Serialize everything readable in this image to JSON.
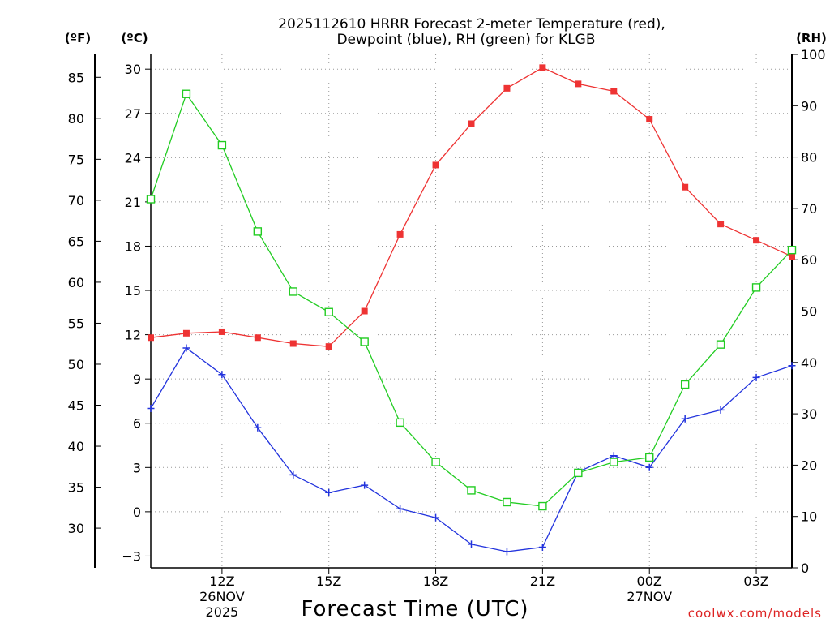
{
  "chart_data": {
    "type": "line",
    "title_line1": "2025112610 HRRR Forecast 2-meter Temperature (red),",
    "title_line2": "Dewpoint (blue), RH (green) for KLGB",
    "left_outer_label": "(ºF)",
    "left_inner_label": "(ºC)",
    "right_label": "(RH)",
    "xlabel": "Forecast Time (UTC)",
    "credit": "coolwx.com/models",
    "x_hours": [
      0,
      1,
      2,
      3,
      4,
      5,
      6,
      7,
      8,
      9,
      10,
      11,
      12,
      13,
      14,
      15,
      16,
      17,
      18
    ],
    "x_range": [
      0,
      18
    ],
    "x_ticks": [
      {
        "hour": 2,
        "lines": [
          "12Z",
          "26NOV",
          "2025"
        ]
      },
      {
        "hour": 5,
        "lines": [
          "15Z"
        ]
      },
      {
        "hour": 8,
        "lines": [
          "18Z"
        ]
      },
      {
        "hour": 11,
        "lines": [
          "21Z"
        ]
      },
      {
        "hour": 14,
        "lines": [
          "00Z",
          "27NOV"
        ]
      },
      {
        "hour": 17,
        "lines": [
          "03Z"
        ]
      }
    ],
    "celsius_axis": {
      "ylim": [
        -3.8,
        31.0
      ],
      "ticks": [
        -3,
        0,
        3,
        6,
        9,
        12,
        15,
        18,
        21,
        24,
        27,
        30
      ]
    },
    "fahrenheit_axis": {
      "ticks": [
        30,
        35,
        40,
        45,
        50,
        55,
        60,
        65,
        70,
        75,
        80,
        85
      ]
    },
    "rh_axis": {
      "ylim": [
        0,
        100
      ],
      "ticks": [
        0,
        10,
        20,
        30,
        40,
        50,
        60,
        70,
        80,
        90,
        100
      ]
    },
    "series": [
      {
        "name": "Temperature",
        "axis": "celsius",
        "color": "#ee3333",
        "marker": "filled-square",
        "values": [
          11.8,
          12.1,
          12.2,
          11.8,
          11.4,
          11.2,
          13.6,
          18.8,
          23.5,
          26.3,
          28.7,
          30.1,
          29.0,
          28.5,
          26.6,
          22.0,
          19.5,
          18.4,
          17.3
        ]
      },
      {
        "name": "Dewpoint",
        "axis": "celsius",
        "color": "#2233dd",
        "marker": "plus",
        "values": [
          7.0,
          11.1,
          9.3,
          5.7,
          2.5,
          1.3,
          1.8,
          0.2,
          -0.4,
          -2.2,
          -2.7,
          -2.4,
          2.7,
          3.8,
          3.0,
          6.3,
          6.9,
          9.1,
          9.9
        ]
      },
      {
        "name": "RH",
        "axis": "rh",
        "color": "#22cc22",
        "marker": "open-square",
        "values": [
          71.8,
          92.3,
          82.3,
          65.5,
          53.8,
          49.8,
          44.0,
          28.3,
          20.6,
          15.1,
          12.8,
          12.0,
          18.5,
          20.6,
          21.5,
          35.7,
          43.5,
          54.6,
          61.9
        ]
      }
    ]
  }
}
